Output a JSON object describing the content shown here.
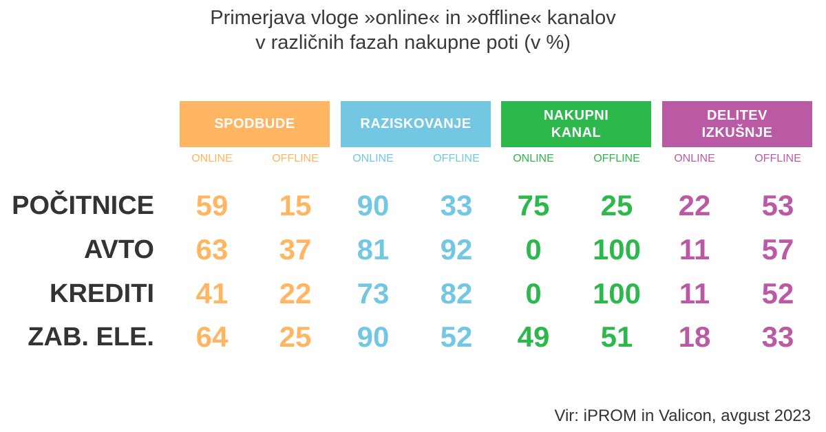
{
  "chart_data": {
    "type": "table",
    "title": "Primerjava vloge »online« in »offline« kanalov",
    "subtitle": "v različnih fazah nakupne poti (v %)",
    "groups": [
      {
        "label": "SPODBUDE",
        "color": "#FFB562"
      },
      {
        "label": "RAZISKOVANJE",
        "color": "#73C7E3"
      },
      {
        "label": "NAKUPNI\nKANAL",
        "color": "#2DB84B"
      },
      {
        "label": "DELITEV\nIZKUŠNJE",
        "color": "#BA5AA5"
      }
    ],
    "subcolumns": [
      "ONLINE",
      "OFFLINE"
    ],
    "rows": [
      {
        "label": "POČITNICE",
        "values": [
          59,
          15,
          90,
          33,
          75,
          25,
          22,
          53
        ]
      },
      {
        "label": "AVTO",
        "values": [
          63,
          37,
          81,
          92,
          0,
          100,
          11,
          57
        ]
      },
      {
        "label": "KREDITI",
        "values": [
          41,
          22,
          73,
          82,
          0,
          100,
          11,
          52
        ]
      },
      {
        "label": "ZAB. ELE.",
        "values": [
          64,
          25,
          90,
          52,
          49,
          51,
          18,
          33
        ]
      }
    ],
    "source": "Vir: iPROM in Valicon, avgust 2023"
  }
}
